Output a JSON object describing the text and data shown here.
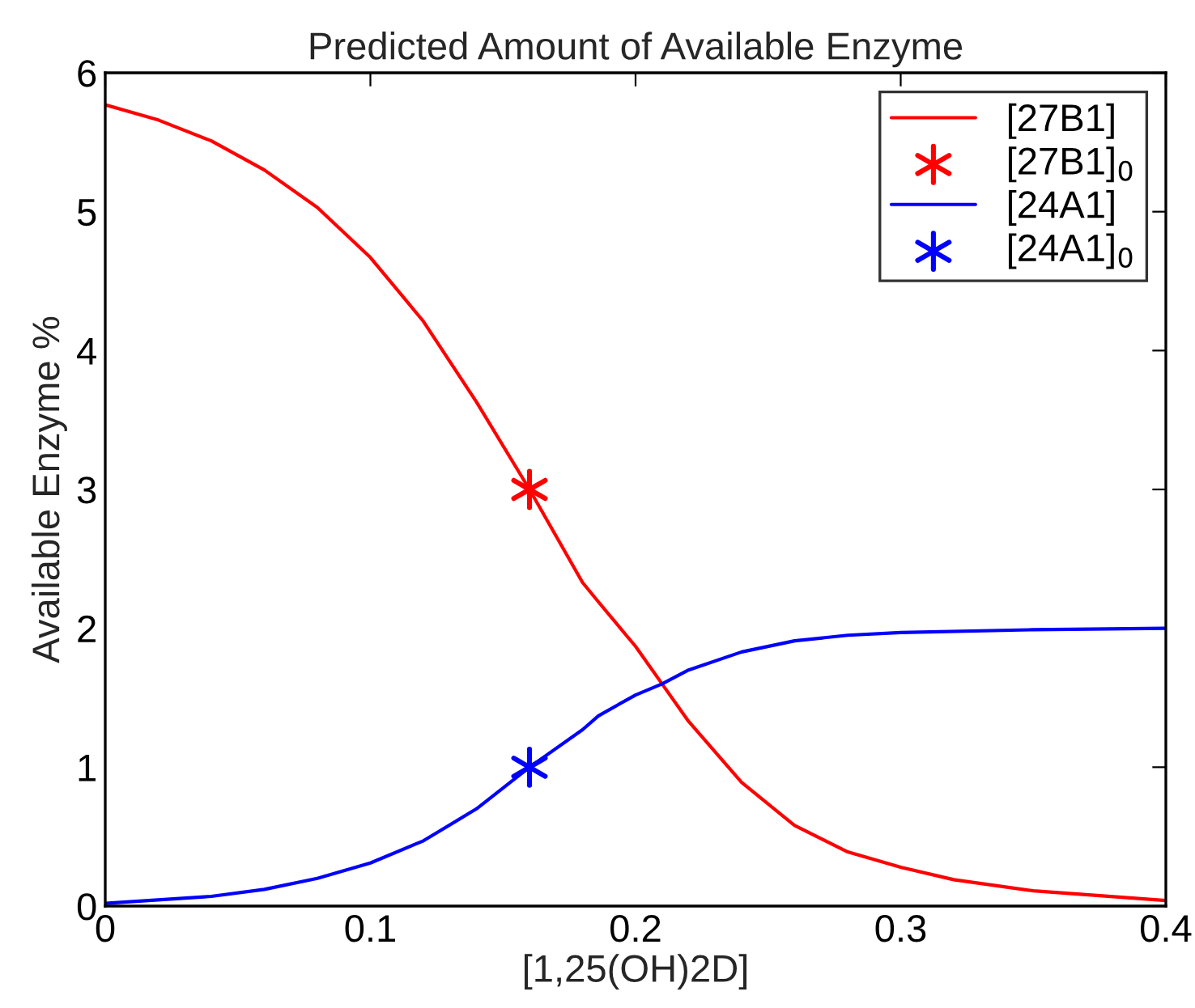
{
  "chart_data": {
    "type": "line",
    "title": "Predicted Amount of Available Enzyme",
    "xlabel": "[1,25(OH)2D]",
    "ylabel": "Available Enzyme %",
    "xlim": [
      0,
      0.4
    ],
    "ylim": [
      0,
      6
    ],
    "xticks": [
      0,
      0.1,
      0.2,
      0.3,
      0.4
    ],
    "yticks": [
      0,
      1,
      2,
      3,
      4,
      5,
      6
    ],
    "grid": false,
    "legend": "top right",
    "series": [
      {
        "name": "[27B1]",
        "color": "#ff0000",
        "line_style": "solid",
        "marker": "none",
        "x": [
          0,
          0.02,
          0.04,
          0.06,
          0.08,
          0.1,
          0.12,
          0.14,
          0.16,
          0.18,
          0.186,
          0.2,
          0.21,
          0.22,
          0.24,
          0.26,
          0.28,
          0.3,
          0.32,
          0.35,
          0.4
        ],
        "values": [
          5.77,
          5.66,
          5.51,
          5.3,
          5.03,
          4.67,
          4.21,
          3.63,
          3.0,
          2.33,
          2.19,
          1.87,
          1.6,
          1.33,
          0.89,
          0.58,
          0.39,
          0.28,
          0.19,
          0.11,
          0.04
        ]
      },
      {
        "name": "[27B1]$_{0}$",
        "type": "scatter",
        "color": "#ff0000",
        "marker": "cross",
        "x": [
          0.16
        ],
        "values": [
          3.0
        ]
      },
      {
        "name": "[24A1]",
        "color": "#0000ff",
        "line_style": "solid",
        "marker": "none",
        "x": [
          0,
          0.04,
          0.06,
          0.08,
          0.1,
          0.12,
          0.14,
          0.16,
          0.18,
          0.186,
          0.2,
          0.21,
          0.22,
          0.24,
          0.26,
          0.28,
          0.3,
          0.35,
          0.4
        ],
        "values": [
          0.02,
          0.07,
          0.12,
          0.2,
          0.31,
          0.47,
          0.7,
          1.0,
          1.27,
          1.37,
          1.52,
          1.6,
          1.7,
          1.83,
          1.91,
          1.95,
          1.97,
          1.99,
          2.0
        ]
      },
      {
        "name": "[24A1]$_{0}$",
        "type": "scatter",
        "color": "#0000ff",
        "marker": "cross",
        "x": [
          0.16
        ],
        "values": [
          1.0
        ]
      }
    ]
  }
}
